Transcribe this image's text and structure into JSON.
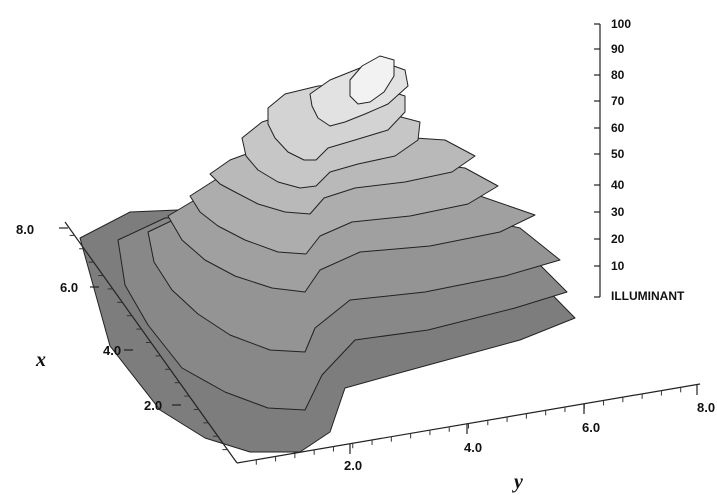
{
  "chart_data": {
    "type": "surface-3d",
    "x_axis": {
      "label": "x",
      "ticks": [
        "2.0",
        "4.0",
        "6.0",
        "8.0"
      ]
    },
    "y_axis": {
      "label": "y",
      "ticks": [
        "2.0",
        "4.0",
        "6.0",
        "8.0"
      ]
    },
    "color_scale": {
      "title": "ILLUMINANT",
      "ticks": [
        "10",
        "20",
        "30",
        "40",
        "50",
        "60",
        "70",
        "80",
        "90",
        "100"
      ]
    },
    "contour_levels": [
      0,
      10,
      20,
      30,
      40,
      50,
      60,
      70,
      80,
      90
    ],
    "level_colors": [
      "#7d7d7d",
      "#888888",
      "#949494",
      "#a0a0a0",
      "#adadad",
      "#b9b9b9",
      "#c6c6c6",
      "#d3d3d3",
      "#e2e2e2",
      "#f2f2f2"
    ]
  }
}
